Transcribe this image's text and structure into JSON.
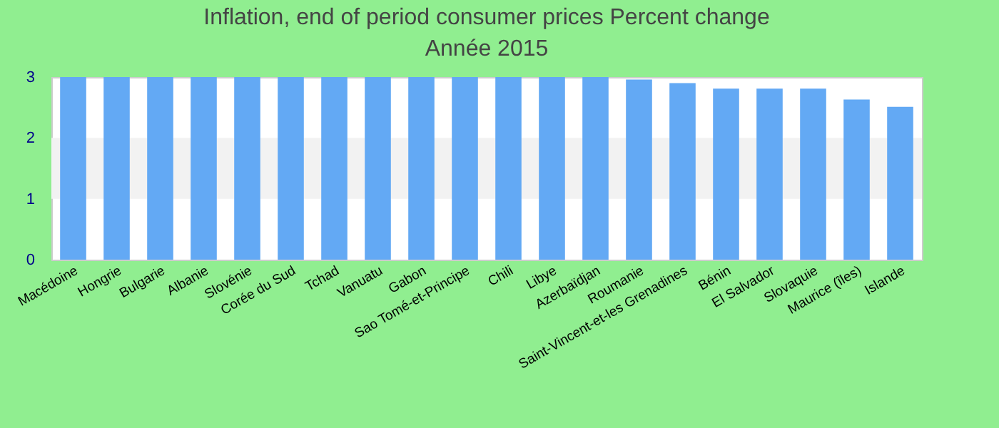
{
  "chart_data": {
    "type": "bar",
    "title": "Inflation, end of period consumer prices  Percent change",
    "subtitle": "Année 2015",
    "categories": [
      "Macédoine",
      "Hongrie",
      "Bulgarie",
      "Albanie",
      "Slovénie",
      "Corée du Sud",
      "Tchad",
      "Vanuatu",
      "Gabon",
      "Sao Tomé-et-Principe",
      "Chili",
      "Libye",
      "Azerbaïdjan",
      "Roumanie",
      "Saint-Vincent-et-les Grenadines",
      "Bénin",
      "El Salvador",
      "Slovaquie",
      "Maurice (îles)",
      "Islande"
    ],
    "values": [
      3,
      3,
      3,
      3,
      3,
      3,
      3,
      3,
      3,
      3,
      3,
      3,
      3,
      2.96,
      2.9,
      2.81,
      2.81,
      2.81,
      2.63,
      2.51
    ],
    "color": "#63a9f4",
    "ylim": [
      0,
      3
    ],
    "yticks": [
      0,
      1,
      2,
      3
    ],
    "bands": [
      {
        "axis": "y",
        "from": 1,
        "to": 2,
        "color": "#f2f2f2"
      }
    ]
  }
}
